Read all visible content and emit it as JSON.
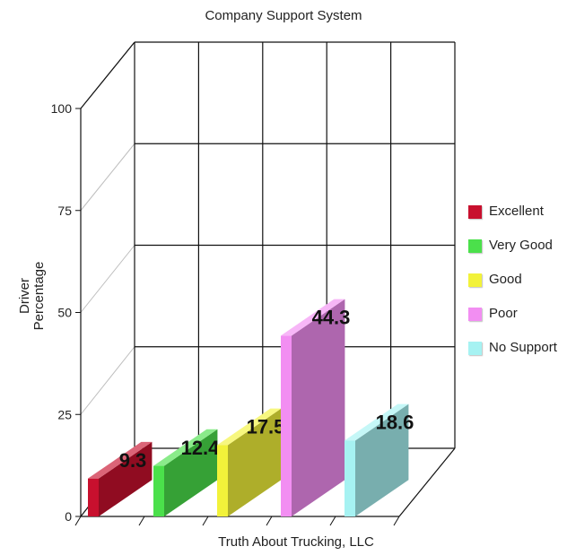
{
  "chart_data": {
    "type": "bar",
    "title": "Company Support System",
    "ylabel_line1": "Driver",
    "ylabel_line2": "Percentage",
    "xlabel": "Truth About Trucking, LLC",
    "ylim": [
      0,
      100
    ],
    "yticks": [
      0,
      25,
      50,
      75,
      100
    ],
    "grid": true,
    "legend_position": "right",
    "series": [
      {
        "name": "Excellent",
        "value": 9.3,
        "label": "9.3",
        "color": "#c8102e"
      },
      {
        "name": "Very Good",
        "value": 12.4,
        "label": "12.4",
        "color": "#4be04b"
      },
      {
        "name": "Good",
        "value": 17.5,
        "label": "17.5",
        "color": "#f2f23a"
      },
      {
        "name": "Poor",
        "value": 44.3,
        "label": "44.3",
        "color": "#f28ef2"
      },
      {
        "name": "No Support",
        "value": 18.6,
        "label": "18.6",
        "color": "#a6f2f2"
      }
    ]
  }
}
